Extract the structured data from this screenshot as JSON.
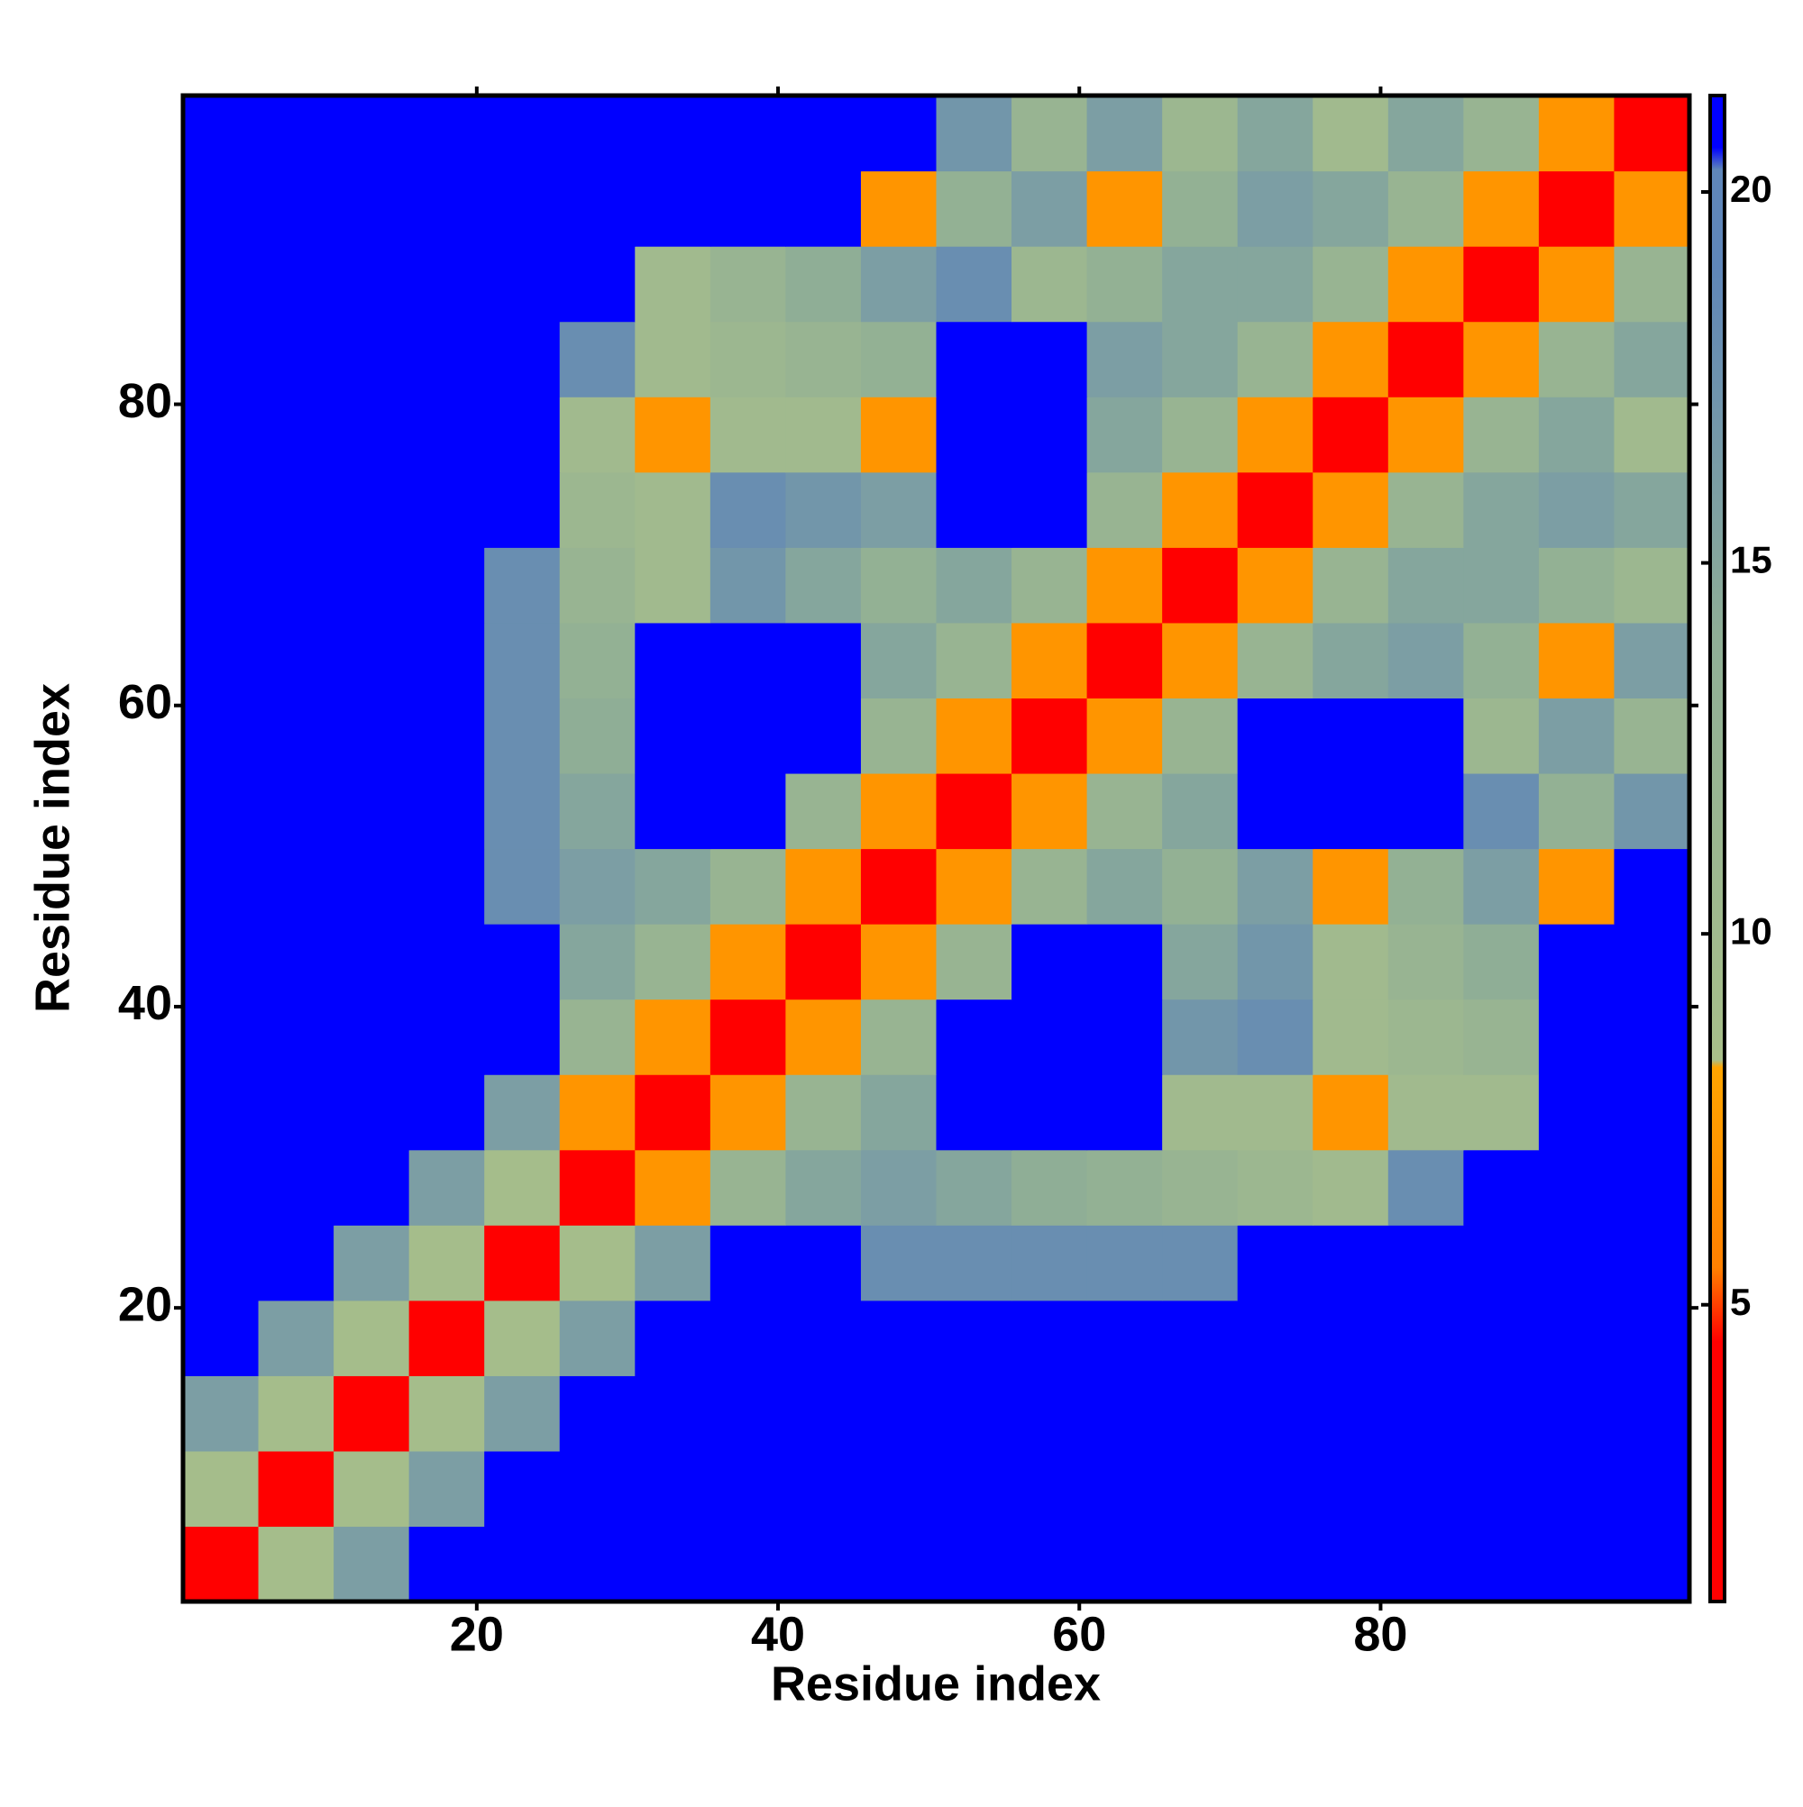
{
  "chart_data": {
    "type": "heatmap",
    "xlabel": "Residue index",
    "ylabel": "Residue index",
    "x": [
      3,
      8,
      13,
      18,
      23,
      28,
      33,
      38,
      43,
      48,
      53,
      58,
      63,
      68,
      73,
      78,
      83,
      88,
      93,
      98
    ],
    "y": [
      3,
      8,
      13,
      18,
      23,
      28,
      33,
      38,
      43,
      48,
      53,
      58,
      63,
      68,
      73,
      78,
      83,
      88,
      93,
      98
    ],
    "z": [
      [
        4,
        9,
        16,
        21,
        21,
        21,
        21,
        21,
        21,
        21,
        21,
        21,
        21,
        21,
        21,
        21,
        21,
        21,
        21,
        21
      ],
      [
        9,
        4,
        9,
        16,
        21,
        21,
        21,
        21,
        21,
        21,
        21,
        21,
        21,
        21,
        21,
        21,
        21,
        21,
        21,
        21
      ],
      [
        16,
        9,
        4,
        9,
        16,
        21,
        21,
        21,
        21,
        21,
        21,
        21,
        21,
        21,
        21,
        21,
        21,
        21,
        21,
        21
      ],
      [
        21,
        16,
        9,
        4,
        9,
        16,
        21,
        21,
        21,
        21,
        21,
        21,
        21,
        21,
        21,
        21,
        21,
        21,
        21,
        21
      ],
      [
        21,
        21,
        16,
        9,
        4,
        9,
        16,
        21,
        21,
        18,
        18,
        18,
        18,
        18,
        21,
        21,
        21,
        21,
        21,
        21
      ],
      [
        21,
        21,
        21,
        16,
        9,
        4,
        7,
        12,
        15,
        16,
        15,
        14,
        13,
        12,
        11,
        10,
        18,
        21,
        21,
        21
      ],
      [
        21,
        21,
        21,
        21,
        16,
        7,
        4,
        7,
        12,
        15,
        21,
        21,
        21,
        10,
        10,
        7,
        10,
        10,
        21,
        21
      ],
      [
        21,
        21,
        21,
        21,
        21,
        12,
        7,
        4,
        7,
        12,
        21,
        21,
        21,
        17,
        18,
        10,
        11,
        12,
        21,
        21
      ],
      [
        21,
        21,
        21,
        21,
        21,
        15,
        12,
        7,
        4,
        7,
        12,
        21,
        21,
        15,
        17,
        10,
        12,
        14,
        21,
        21
      ],
      [
        21,
        21,
        21,
        21,
        18,
        16,
        15,
        12,
        7,
        4,
        7,
        12,
        15,
        13,
        16,
        7,
        13,
        16,
        7,
        21
      ],
      [
        21,
        21,
        21,
        21,
        18,
        15,
        21,
        21,
        12,
        7,
        4,
        7,
        12,
        15,
        21,
        21,
        21,
        18,
        13,
        17
      ],
      [
        21,
        21,
        21,
        21,
        18,
        14,
        21,
        21,
        21,
        12,
        7,
        4,
        7,
        12,
        21,
        21,
        21,
        11,
        16,
        12
      ],
      [
        21,
        21,
        21,
        21,
        18,
        13,
        21,
        21,
        21,
        15,
        12,
        7,
        4,
        7,
        12,
        15,
        16,
        13,
        7,
        16
      ],
      [
        21,
        21,
        21,
        21,
        18,
        12,
        10,
        17,
        15,
        13,
        15,
        12,
        7,
        4,
        7,
        12,
        15,
        15,
        13,
        11
      ],
      [
        21,
        21,
        21,
        21,
        21,
        11,
        10,
        18,
        17,
        16,
        21,
        21,
        12,
        7,
        4,
        7,
        12,
        15,
        16,
        15
      ],
      [
        21,
        21,
        21,
        21,
        21,
        10,
        7,
        10,
        10,
        7,
        21,
        21,
        15,
        12,
        7,
        4,
        7,
        12,
        15,
        10
      ],
      [
        21,
        21,
        21,
        21,
        21,
        18,
        10,
        11,
        12,
        13,
        21,
        21,
        16,
        15,
        12,
        7,
        4,
        7,
        12,
        15
      ],
      [
        21,
        21,
        21,
        21,
        21,
        21,
        10,
        12,
        14,
        16,
        18,
        11,
        13,
        15,
        15,
        12,
        7,
        4,
        7,
        12
      ],
      [
        21,
        21,
        21,
        21,
        21,
        21,
        21,
        21,
        21,
        7,
        13,
        16,
        7,
        13,
        16,
        15,
        12,
        7,
        4,
        7
      ],
      [
        21,
        21,
        21,
        21,
        21,
        21,
        21,
        21,
        21,
        21,
        17,
        12,
        16,
        11,
        15,
        10,
        15,
        12,
        7,
        4
      ]
    ],
    "xlim": [
      0.5,
      100.5
    ],
    "ylim": [
      0.5,
      100.5
    ],
    "xticks": [
      20,
      40,
      60,
      80
    ],
    "yticks": [
      20,
      40,
      60,
      80
    ],
    "zlim": [
      1,
      21.3
    ],
    "zticks": [
      5,
      10,
      15,
      20
    ],
    "colorscale": [
      [
        1,
        "#ff0000"
      ],
      [
        4.5,
        "#ff0000"
      ],
      [
        5.5,
        "#ff8000"
      ],
      [
        8.2,
        "#ffa500"
      ],
      [
        8.3,
        "#a8bf8a"
      ],
      [
        14,
        "#8fae96"
      ],
      [
        19,
        "#5f86b8"
      ],
      [
        20.3,
        "#5f86b8"
      ],
      [
        20.6,
        "#0000ff"
      ],
      [
        21.3,
        "#0000ff"
      ]
    ]
  }
}
